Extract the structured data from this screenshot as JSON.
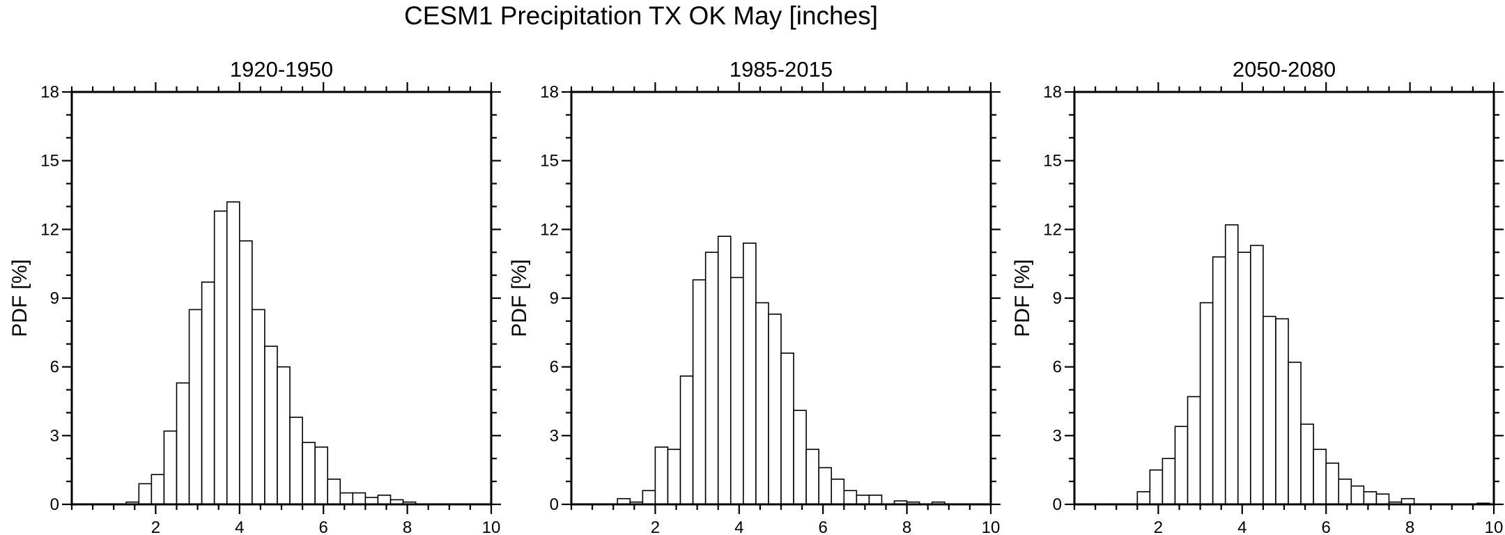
{
  "figure": {
    "title": "CESM1 Precipitation TX OK May [inches]"
  },
  "chart_data": [
    {
      "type": "bar",
      "subtitle": "1920-1950",
      "ylabel": "PDF  [%]",
      "xlabel": "",
      "xlim": [
        0,
        10
      ],
      "ylim": [
        0,
        18
      ],
      "xticks": [
        "2",
        "4",
        "6",
        "8",
        "10"
      ],
      "yticks": [
        "0",
        "3",
        "6",
        "9",
        "12",
        "15",
        "18"
      ],
      "bin_width": 0.3,
      "bin_start": [
        1.3,
        1.6,
        1.9,
        2.2,
        2.5,
        2.8,
        3.1,
        3.4,
        3.7,
        4.0,
        4.3,
        4.6,
        4.9,
        5.2,
        5.5,
        5.8,
        6.1,
        6.4,
        6.7,
        7.0,
        7.3,
        7.6,
        7.9,
        8.2,
        8.5
      ],
      "values": [
        0.1,
        0.9,
        1.3,
        3.2,
        5.3,
        8.5,
        9.7,
        12.8,
        13.2,
        11.5,
        8.5,
        6.9,
        6.0,
        3.8,
        2.7,
        2.5,
        1.1,
        0.5,
        0.5,
        0.3,
        0.4,
        0.2,
        0.1,
        0,
        0
      ],
      "grid": false
    },
    {
      "type": "bar",
      "subtitle": "1985-2015",
      "ylabel": "PDF  [%]",
      "xlabel": "",
      "xlim": [
        0,
        10
      ],
      "ylim": [
        0,
        18
      ],
      "xticks": [
        "2",
        "4",
        "6",
        "8",
        "10"
      ],
      "yticks": [
        "0",
        "3",
        "6",
        "9",
        "12",
        "15",
        "18"
      ],
      "bin_width": 0.3,
      "bin_start": [
        1.1,
        1.4,
        1.7,
        2.0,
        2.3,
        2.6,
        2.9,
        3.2,
        3.5,
        3.8,
        4.1,
        4.4,
        4.7,
        5.0,
        5.3,
        5.6,
        5.9,
        6.2,
        6.5,
        6.8,
        7.1,
        7.4,
        7.7,
        8.0,
        8.3,
        8.6,
        8.9,
        9.2,
        9.5
      ],
      "values": [
        0.25,
        0.1,
        0.6,
        2.5,
        2.4,
        5.6,
        9.8,
        11.0,
        11.7,
        9.9,
        11.4,
        8.8,
        8.3,
        6.6,
        4.1,
        2.4,
        1.6,
        1.1,
        0.6,
        0.4,
        0.4,
        0,
        0.15,
        0.1,
        0,
        0.1,
        0,
        0,
        0
      ],
      "grid": false
    },
    {
      "type": "bar",
      "subtitle": "2050-2080",
      "ylabel": "PDF  [%]",
      "xlabel": "",
      "xlim": [
        0,
        10
      ],
      "ylim": [
        0,
        18
      ],
      "xticks": [
        "2",
        "4",
        "6",
        "8",
        "10"
      ],
      "yticks": [
        "0",
        "3",
        "6",
        "9",
        "12",
        "15",
        "18"
      ],
      "bin_width": 0.3,
      "bin_start": [
        1.5,
        1.8,
        2.1,
        2.4,
        2.7,
        3.0,
        3.3,
        3.6,
        3.9,
        4.2,
        4.5,
        4.8,
        5.1,
        5.4,
        5.7,
        6.0,
        6.3,
        6.6,
        6.9,
        7.2,
        7.5,
        7.8,
        8.1,
        8.4,
        8.7,
        9.0,
        9.3,
        9.6
      ],
      "values": [
        0.55,
        1.5,
        2.0,
        3.4,
        4.7,
        8.8,
        10.8,
        12.2,
        11.0,
        11.3,
        8.2,
        8.1,
        6.2,
        3.5,
        2.4,
        1.8,
        1.1,
        0.8,
        0.55,
        0.45,
        0.1,
        0.25,
        0,
        0,
        0,
        0,
        0,
        0.05
      ],
      "grid": false
    }
  ]
}
